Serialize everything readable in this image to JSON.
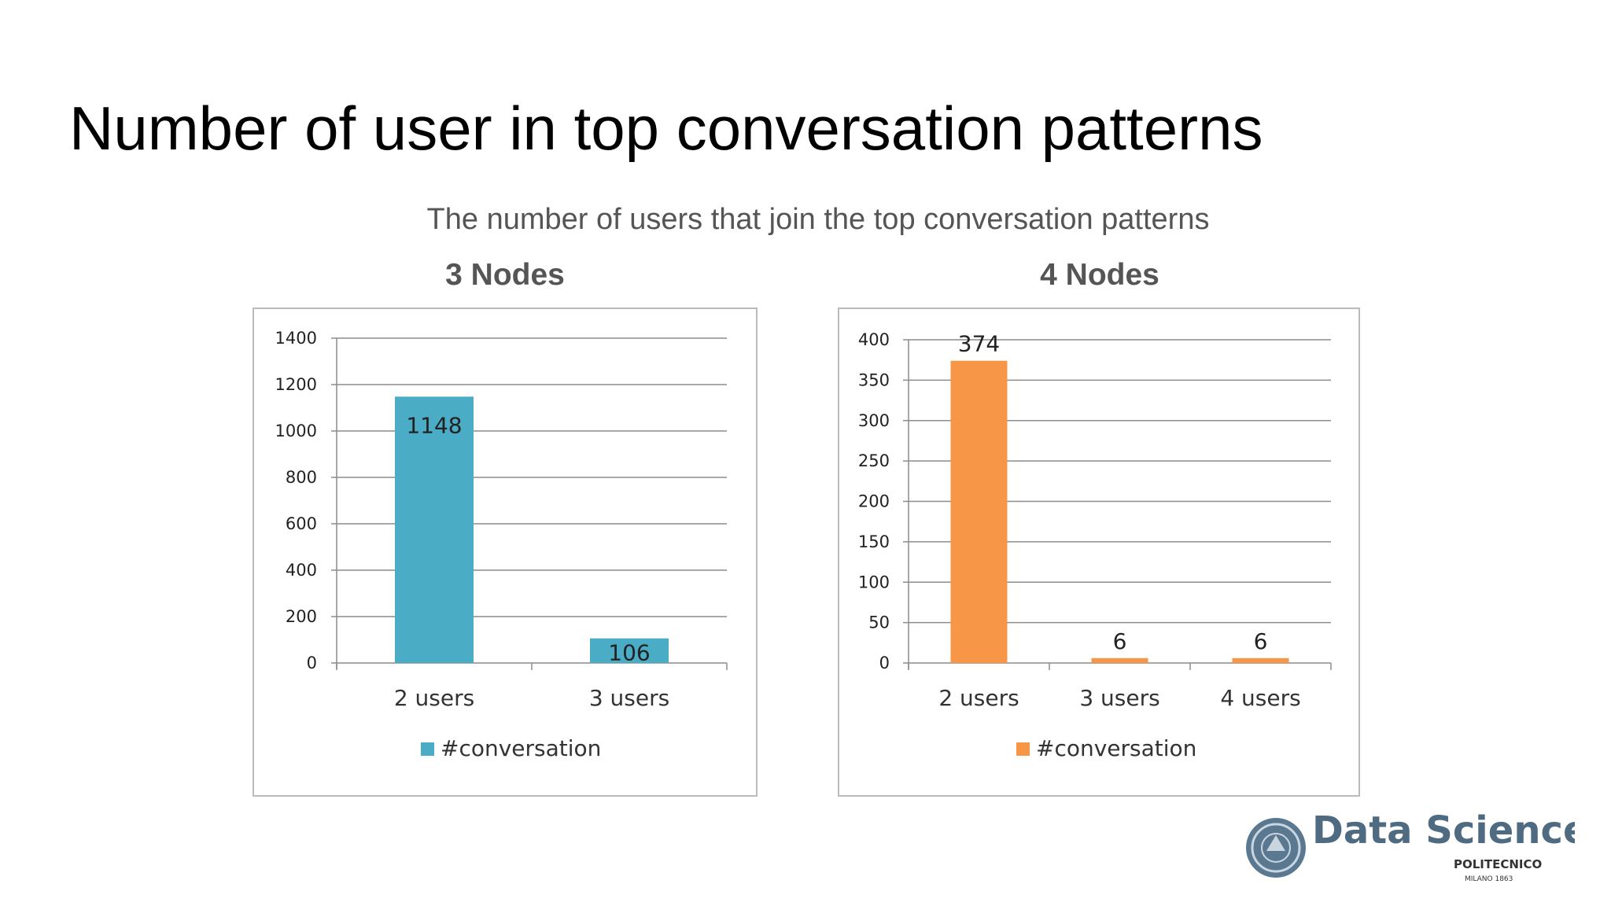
{
  "slide": {
    "title": "Number of user in top conversation patterns",
    "subtitle": "The number of users that join the top conversation patterns"
  },
  "chart_data": [
    {
      "type": "bar",
      "title": "3 Nodes",
      "categories": [
        "2 users",
        "3 users"
      ],
      "series": [
        {
          "name": "#conversation",
          "values": [
            1148,
            106
          ]
        }
      ],
      "data_labels": [
        "1148",
        "106"
      ],
      "ylim": [
        0,
        1400
      ],
      "yticks": [
        0,
        200,
        400,
        600,
        800,
        1000,
        1200,
        1400
      ],
      "grid": true,
      "legend": "bottom",
      "color": "#4bacc6"
    },
    {
      "type": "bar",
      "title": "4 Nodes",
      "categories": [
        "2 users",
        "3 users",
        "4 users"
      ],
      "series": [
        {
          "name": "#conversation",
          "values": [
            374,
            6,
            6
          ]
        }
      ],
      "data_labels": [
        "374",
        "6",
        "6"
      ],
      "ylim": [
        0,
        400
      ],
      "yticks": [
        0,
        50,
        100,
        150,
        200,
        250,
        300,
        350,
        400
      ],
      "grid": true,
      "legend": "bottom",
      "color": "#f79646"
    }
  ],
  "logo": {
    "text": "Data Science",
    "line1": "POLITECNICO",
    "line2": "MILANO 1863",
    "color": "#4f6b82"
  }
}
